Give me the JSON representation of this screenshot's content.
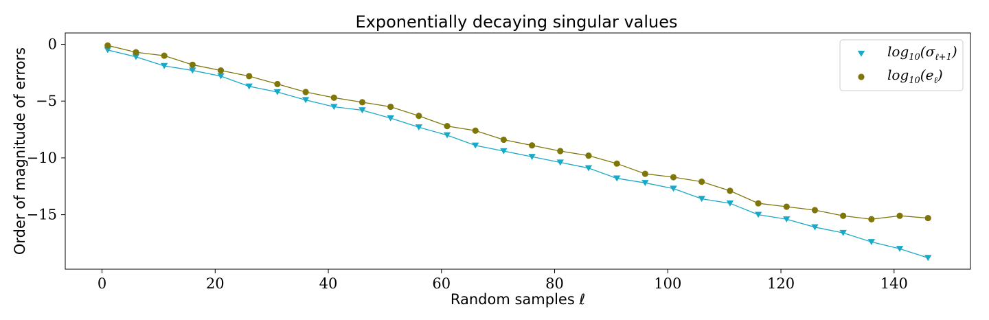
{
  "chart_data": {
    "type": "line",
    "title": "Exponentially decaying singular values",
    "xlabel": "Random samples ℓ",
    "ylabel": "Order of magnitude of errors",
    "xlim": [
      -6.5,
      153.5
    ],
    "ylim": [
      -19.8,
      1.0
    ],
    "xticks": [
      0,
      20,
      40,
      60,
      80,
      100,
      120,
      140
    ],
    "yticks": [
      0,
      -5,
      -10,
      -15
    ],
    "xtick_labels": [
      "0",
      "20",
      "40",
      "60",
      "80",
      "100",
      "120",
      "140"
    ],
    "ytick_labels": [
      "0",
      "−5",
      "−10",
      "−15"
    ],
    "grid": false,
    "legend_position": "top-right",
    "x": [
      1,
      6,
      11,
      16,
      21,
      26,
      31,
      36,
      41,
      46,
      51,
      56,
      61,
      66,
      71,
      76,
      81,
      86,
      91,
      96,
      101,
      106,
      111,
      116,
      121,
      126,
      131,
      136,
      141,
      146
    ],
    "series": [
      {
        "name": "log10(σℓ+1)",
        "legend_base": "log",
        "legend_sub": "10",
        "legend_arg": "(σ",
        "legend_arg_sub": "ℓ+1",
        "legend_close": ")",
        "marker": "triangle-down",
        "color": "#17a9c7",
        "values": [
          -0.5,
          -1.1,
          -1.9,
          -2.3,
          -2.8,
          -3.7,
          -4.2,
          -4.9,
          -5.5,
          -5.8,
          -6.5,
          -7.3,
          -8.0,
          -8.9,
          -9.4,
          -9.9,
          -10.4,
          -10.9,
          -11.8,
          -12.2,
          -12.7,
          -13.6,
          -14.0,
          -15.0,
          -15.4,
          -16.1,
          -16.6,
          -17.4,
          -18.0,
          -18.8
        ]
      },
      {
        "name": "log10(eℓ)",
        "legend_base": "log",
        "legend_sub": "10",
        "legend_arg": "(e",
        "legend_arg_sub": "ℓ",
        "legend_close": ")",
        "marker": "circle",
        "color": "#7f760a",
        "values": [
          -0.1,
          -0.7,
          -1.0,
          -1.8,
          -2.3,
          -2.8,
          -3.5,
          -4.2,
          -4.7,
          -5.1,
          -5.5,
          -6.3,
          -7.2,
          -7.6,
          -8.4,
          -8.9,
          -9.4,
          -9.8,
          -10.5,
          -11.4,
          -11.7,
          -12.1,
          -12.9,
          -14.0,
          -14.3,
          -14.6,
          -15.1,
          -15.4,
          -15.1,
          -15.3
        ]
      }
    ]
  }
}
